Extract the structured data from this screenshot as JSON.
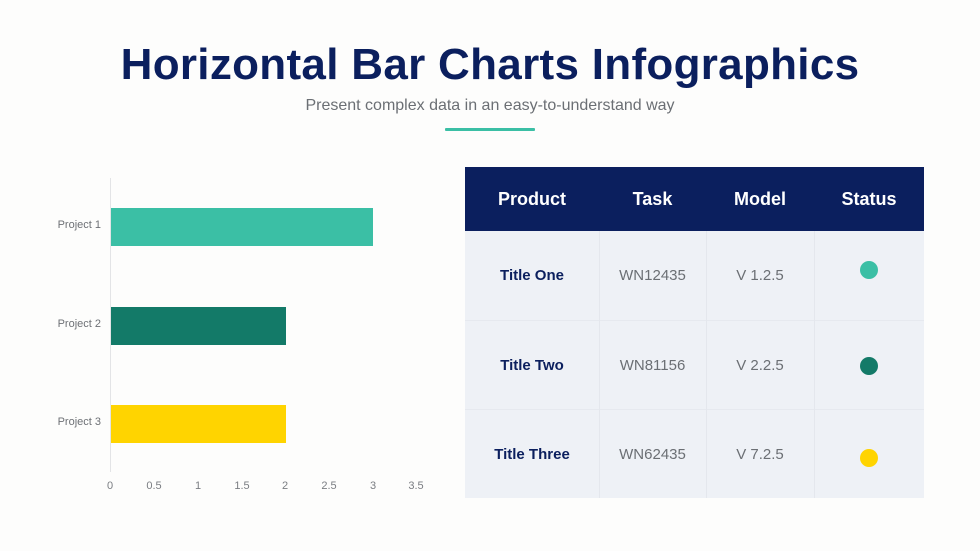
{
  "header": {
    "title": "Horizontal Bar Charts Infographics",
    "subtitle": "Present complex data in an easy-to-understand way",
    "accent_color": "#3bbfa5"
  },
  "chart_data": {
    "type": "bar",
    "orientation": "horizontal",
    "title": "",
    "xlabel": "",
    "ylabel": "",
    "categories": [
      "Project 1",
      "Project 2",
      "Project 3"
    ],
    "values": [
      3,
      2,
      2
    ],
    "colors": [
      "#3bbfa5",
      "#137a68",
      "#ffd400"
    ],
    "xlim": [
      0,
      3.5
    ],
    "xticks": [
      "0",
      "0.5",
      "1",
      "1.5",
      "2",
      "2.5",
      "3",
      "3.5"
    ],
    "grid": false,
    "legend": null
  },
  "table": {
    "headers": [
      "Product",
      "Task",
      "Model",
      "Status"
    ],
    "header_bg": "#0b1f5e",
    "rows": [
      {
        "product": "Title One",
        "task": "WN12435",
        "model": "V 1.2.5",
        "status_color": "#3bbfa5"
      },
      {
        "product": "Title Two",
        "task": "WN81156",
        "model": "V 2.2.5",
        "status_color": "#137a68"
      },
      {
        "product": "Title Three",
        "task": "WN62435",
        "model": "V 7.2.5",
        "status_color": "#ffd400"
      }
    ]
  }
}
